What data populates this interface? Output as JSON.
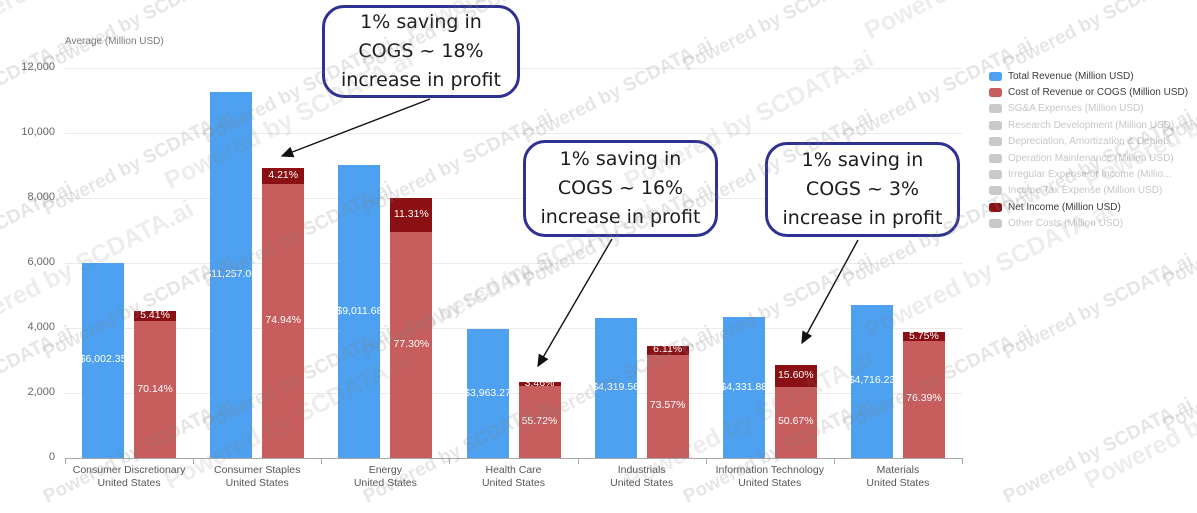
{
  "watermark": "Powered by SCDATA.ai",
  "chart_data": {
    "type": "bar",
    "title": "Average (Million USD)",
    "ylim": [
      0,
      12000
    ],
    "ytick_step": 2000,
    "ytick_labels": [
      "0",
      "2,000",
      "4,000",
      "6,000",
      "8,000",
      "10,000",
      "12,000"
    ],
    "categories": [
      {
        "line1": "Consumer Discretionary",
        "line2": "United States"
      },
      {
        "line1": "Consumer Staples",
        "line2": "United States"
      },
      {
        "line1": "Energy",
        "line2": "United States"
      },
      {
        "line1": "Health Care",
        "line2": "United States"
      },
      {
        "line1": "Industrials",
        "line2": "United States"
      },
      {
        "line1": "Information Technology",
        "line2": "United States"
      },
      {
        "line1": "Materials",
        "line2": "United States"
      }
    ],
    "series": [
      {
        "name": "Total Revenue (Million USD)",
        "values": [
          6002.35,
          11257.06,
          9011.68,
          3963.27,
          4319.56,
          4331.88,
          4716.23
        ],
        "labels": [
          "$6,002.35",
          "$11,257.06",
          "$9,011.68",
          "$3,963.27",
          "$4,319.56",
          "$4,331.88",
          "$4,716.23"
        ]
      },
      {
        "name": "Cost of Revenue or COGS (Million USD)",
        "pct_of_revenue": [
          70.14,
          74.94,
          77.3,
          55.72,
          73.57,
          50.67,
          76.39
        ],
        "labels": [
          "70.14%",
          "74.94%",
          "77.30%",
          "55.72%",
          "73.57%",
          "50.67%",
          "76.39%"
        ]
      },
      {
        "name": "Net Income (Million USD)",
        "pct_of_revenue": [
          5.41,
          4.21,
          11.31,
          3.46,
          6.11,
          15.6,
          5.75
        ],
        "labels": [
          "5.41%",
          "4.21%",
          "11.31%",
          "3.46%",
          "6.11%",
          "15.60%",
          "5.75%"
        ]
      }
    ],
    "legend": [
      {
        "label": "Total Revenue (Million USD)",
        "color": "#4DA1F0",
        "active": true
      },
      {
        "label": "Cost of Revenue or COGS (Million USD)",
        "color": "#C75D5D",
        "active": true
      },
      {
        "label": "SG&A Expenses (Million USD)",
        "color": "#c9c9c9",
        "active": false
      },
      {
        "label": "Research Development (Million USD)",
        "color": "#c9c9c9",
        "active": false
      },
      {
        "label": "Depreciation, Amortization & Deplet...",
        "color": "#c9c9c9",
        "active": false
      },
      {
        "label": "Operation Maintenance (Million USD)",
        "color": "#c9c9c9",
        "active": false
      },
      {
        "label": "Irregular Expense or Income (Millio...",
        "color": "#c9c9c9",
        "active": false
      },
      {
        "label": "Income Tax Expense (Million USD)",
        "color": "#c9c9c9",
        "active": false
      },
      {
        "label": "Net Income (Million USD)",
        "color": "#8B1014",
        "active": true
      },
      {
        "label": "Other Costs (Million USD)",
        "color": "#c9c9c9",
        "active": false
      }
    ]
  },
  "colors": {
    "revenue": "#4DA1F0",
    "cogs": "#C75D5D",
    "net_income": "#8B1014",
    "annotation_border": "#2e3191",
    "arrow": "#111111"
  },
  "annotations": [
    {
      "lines": [
        "1% saving in",
        "COGS ~ 18%",
        "increase in profit"
      ]
    },
    {
      "lines": [
        "1% saving in",
        "COGS ~ 16%",
        "increase in profit"
      ]
    },
    {
      "lines": [
        "1% saving in",
        "COGS ~ 3%",
        "increase in profit"
      ]
    }
  ]
}
